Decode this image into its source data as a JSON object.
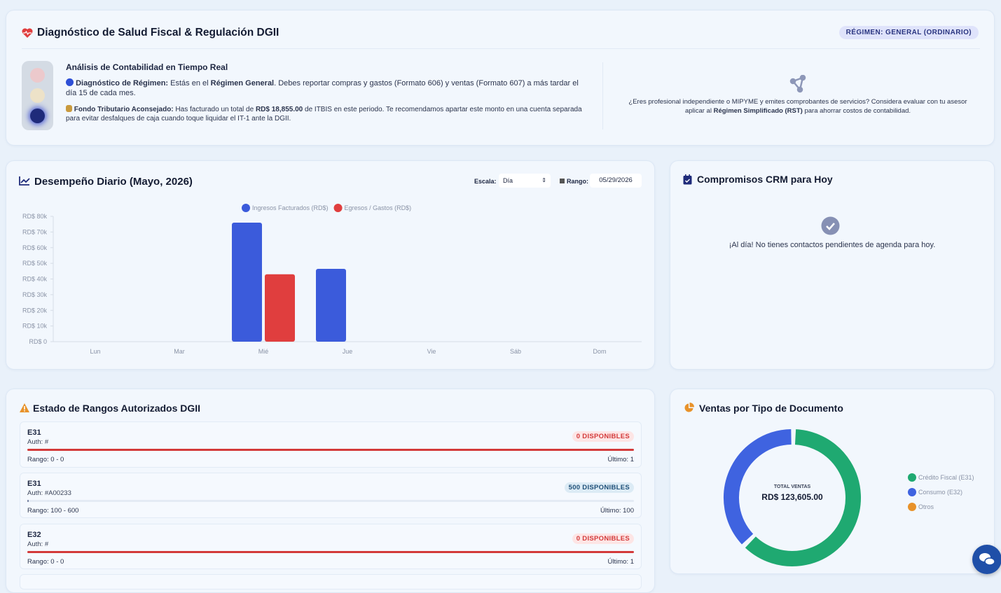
{
  "header": {
    "title": "Diagnóstico de Salud Fiscal & Regulación DGII",
    "badge": "RÉGIMEN: GENERAL (ORDINARIO)"
  },
  "analysis": {
    "title": "Análisis de Contabilidad en Tiempo Real",
    "regime": {
      "label": "Diagnóstico de Régimen:",
      "text_1": "Estás en el",
      "highlight": "Régimen General",
      "text_2": ". Debes reportar compras y gastos (Formato 606) y ventas (Formato 607) a más tardar el día 15 de cada mes."
    },
    "fund": {
      "label": "Fondo Tributario Aconsejado:",
      "text_1": "Has facturado un total de",
      "highlight": "RD$ 18,855.00",
      "text_2": "de ITBIS en este periodo. Te recomendamos apartar este monto en una cuenta separada para evitar desfalques de caja cuando toque liquidar el IT-1 ante la DGII."
    }
  },
  "tip": {
    "text_1": "¿Eres profesional independiente o MIPYME y emites comprobantes de servicios? Considera evaluar con tu asesor aplicar al",
    "highlight": "Régimen Simplificado (RST)",
    "text_2": "para ahorrar costos de contabilidad."
  },
  "controls": {
    "scale_label": "Escala:",
    "scale_value": "Día",
    "range_label": "Rango:",
    "range_value": "05/29/2026"
  },
  "crm": {
    "title": "Compromisos CRM para Hoy",
    "empty": "¡Al día! No tienes contactos pendientes de agenda para hoy."
  },
  "ranges": {
    "title": "Estado de Rangos Autorizados DGII",
    "items": [
      {
        "code": "E31",
        "auth": "Auth: #",
        "badge": "0 DISPONIBLES",
        "range": "Rango: 0 - 0",
        "last": "Último: 1"
      },
      {
        "code": "E31",
        "auth": "Auth: #A00233",
        "badge": "500 DISPONIBLES",
        "range": "Rango: 100 - 600",
        "last": "Último: 100"
      },
      {
        "code": "E32",
        "auth": "Auth: #",
        "badge": "0 DISPONIBLES",
        "range": "Rango: 0 - 0",
        "last": "Último: 1"
      }
    ]
  },
  "chart_data": [
    {
      "type": "bar",
      "title": "Desempeño Diario (Mayo, 2026)",
      "categories": [
        "Lun",
        "Mar",
        "Mié",
        "Jue",
        "Vie",
        "Sáb",
        "Dom"
      ],
      "series": [
        {
          "name": "Ingresos Facturados (RD$)",
          "color": "#3b5bdb",
          "values": [
            0,
            0,
            76000,
            46500,
            0,
            0,
            0
          ]
        },
        {
          "name": "Egresos / Gastos (RD$)",
          "color": "#e03e3e",
          "values": [
            0,
            0,
            43000,
            0,
            0,
            0,
            0
          ]
        }
      ],
      "ylim": [
        0,
        80000
      ],
      "yticks": [
        {
          "value": 0,
          "label": "RD$ 0"
        },
        {
          "value": 10000,
          "label": "RD$ 10k"
        },
        {
          "value": 20000,
          "label": "RD$ 20k"
        },
        {
          "value": 30000,
          "label": "RD$ 30k"
        },
        {
          "value": 40000,
          "label": "RD$ 40k"
        },
        {
          "value": 50000,
          "label": "RD$ 50k"
        },
        {
          "value": 60000,
          "label": "RD$ 60k"
        },
        {
          "value": 70000,
          "label": "RD$ 70k"
        },
        {
          "value": 80000,
          "label": "RD$ 80k"
        }
      ]
    },
    {
      "type": "pie",
      "title": "Ventas por Tipo de Documento",
      "center_label": "TOTAL VENTAS",
      "center_value": "RD$ 123,605.00",
      "categories": [
        "Crédito Fiscal (E31)",
        "Consumo (E32)",
        "Otros"
      ],
      "colors": [
        "#1fa971",
        "#3f63e0",
        "#e8922a"
      ],
      "values": [
        77000,
        46605,
        0
      ]
    }
  ]
}
